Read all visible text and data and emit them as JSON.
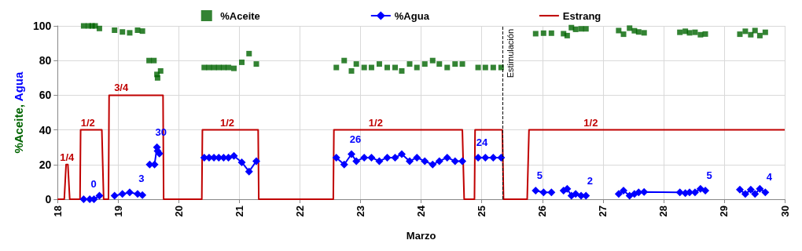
{
  "chart_data": {
    "type": "scatter",
    "xlabel": "Marzo",
    "ylabel": "%Aceite, Agua",
    "xlim": [
      18,
      30
    ],
    "xticks": [
      18,
      19,
      20,
      21,
      22,
      23,
      24,
      25,
      26,
      27,
      28,
      29,
      30
    ],
    "ylim": [
      0,
      100
    ],
    "yticks": [
      0,
      20,
      40,
      60,
      80,
      100
    ],
    "grid": true,
    "legend": "top",
    "series": [
      {
        "name": "%Aceite",
        "marker": "square",
        "color": "#006400",
        "x": [
          18.43,
          18.51,
          18.57,
          18.62,
          18.69,
          18.94,
          19.07,
          19.19,
          19.32,
          19.4,
          19.51,
          19.59,
          19.64,
          19.65,
          19.7,
          20.42,
          20.5,
          20.58,
          20.66,
          20.74,
          20.82,
          20.91,
          21.04,
          21.16,
          21.28,
          22.6,
          22.73,
          22.85,
          22.93,
          23.06,
          23.18,
          23.31,
          23.44,
          23.57,
          23.68,
          23.81,
          23.93,
          24.06,
          24.19,
          24.3,
          24.43,
          24.56,
          24.68,
          24.94,
          25.06,
          25.19,
          25.32,
          25.89,
          26.02,
          26.15,
          26.35,
          26.41,
          26.48,
          26.55,
          26.64,
          26.72,
          27.26,
          27.34,
          27.44,
          27.52,
          27.59,
          27.68,
          28.27,
          28.36,
          28.43,
          28.52,
          28.61,
          28.69,
          29.26,
          29.35,
          29.44,
          29.51,
          29.59,
          29.68
        ],
        "values": [
          100,
          100,
          100,
          100,
          98.5,
          97.5,
          96.5,
          96,
          97.5,
          97,
          80,
          80,
          72,
          70,
          74,
          76,
          76,
          76,
          76,
          76,
          76,
          75.5,
          79,
          84,
          78,
          76,
          80,
          74,
          78,
          76,
          76,
          78,
          76,
          76,
          74,
          78,
          76,
          78,
          80,
          78,
          76,
          78,
          78,
          76,
          76,
          76,
          76,
          95.5,
          95.8,
          95.8,
          95.5,
          94.4,
          99,
          98,
          98.3,
          98.3,
          97.3,
          95.2,
          98.7,
          97.2,
          96.5,
          96,
          96.3,
          96.9,
          96,
          96.3,
          94.9,
          95.3,
          95.2,
          96.9,
          94.9,
          97.3,
          94.4,
          96.3
        ]
      },
      {
        "name": "%Agua",
        "type": "line",
        "marker": "diamond",
        "color": "#0000ff",
        "x": [
          18.43,
          18.53,
          18.6,
          18.69,
          18.8,
          18.94,
          19.07,
          19.19,
          19.32,
          19.4,
          19.46,
          19.52,
          19.6,
          19.64,
          19.65,
          19.68,
          20,
          20.42,
          20.5,
          20.58,
          20.66,
          20.74,
          20.82,
          20.91,
          21.04,
          21.16,
          21.28,
          22,
          22.6,
          22.73,
          22.85,
          22.93,
          23.06,
          23.18,
          23.31,
          23.44,
          23.57,
          23.68,
          23.81,
          23.93,
          24.06,
          24.19,
          24.3,
          24.43,
          24.56,
          24.68,
          24.8,
          24.94,
          25.06,
          25.19,
          25.32,
          25.6,
          25.89,
          26.02,
          26.15,
          26.25,
          26.35,
          26.41,
          26.48,
          26.55,
          26.64,
          26.72,
          27,
          27.26,
          27.34,
          27.44,
          27.52,
          27.59,
          27.68,
          28.27,
          28.36,
          28.43,
          28.52,
          28.61,
          28.69,
          29,
          29.26,
          29.35,
          29.44,
          29.51,
          29.59,
          29.68
        ],
        "values": [
          0,
          0,
          0,
          2,
          null,
          2,
          3,
          4,
          3,
          2.4,
          null,
          20,
          20,
          30,
          27.8,
          26.4,
          null,
          24,
          24,
          24,
          24,
          24,
          24,
          25,
          21.3,
          16,
          22,
          null,
          24,
          20,
          26,
          22,
          24,
          24,
          22,
          24,
          24,
          26,
          22,
          24,
          22,
          20,
          22,
          24,
          22,
          22,
          null,
          24,
          24,
          24,
          24,
          null,
          5,
          4,
          4,
          null,
          5,
          6,
          2,
          3,
          2,
          2,
          null,
          3,
          5,
          2,
          3,
          4,
          4.2,
          4,
          3.5,
          4,
          4,
          6,
          5,
          null,
          5.5,
          3,
          5.5,
          3,
          6,
          4
        ],
        "value_labels": [
          null,
          "0",
          null,
          null,
          null,
          null,
          null,
          null,
          "3",
          null,
          null,
          null,
          null,
          "30",
          null,
          null,
          null,
          null,
          null,
          null,
          null,
          null,
          null,
          null,
          null,
          null,
          null,
          null,
          null,
          null,
          "26",
          null,
          null,
          null,
          null,
          null,
          null,
          null,
          null,
          null,
          null,
          null,
          null,
          null,
          null,
          null,
          null,
          "24",
          null,
          null,
          null,
          null,
          "5",
          null,
          null,
          null,
          null,
          null,
          null,
          null,
          null,
          "2",
          null,
          null,
          null,
          null,
          null,
          null,
          null,
          null,
          null,
          null,
          null,
          null,
          "5",
          null,
          null,
          null,
          null,
          null,
          null,
          "4"
        ]
      },
      {
        "name": "Estrang",
        "type": "line",
        "marker": "none",
        "color": "#c00000",
        "x": [
          18,
          18.11,
          18.14,
          18.17,
          18.2,
          18.37,
          18.38,
          18.73,
          18.76,
          18.84,
          18.85,
          19.74,
          19.75,
          20.38,
          20.39,
          21.31,
          21.32,
          22.55,
          22.56,
          24.68,
          24.71,
          24.88,
          24.89,
          25.34,
          25.36,
          25.75,
          25.78,
          30
        ],
        "values": [
          0,
          0,
          20,
          20,
          0,
          0,
          40,
          40,
          0,
          0,
          60,
          60,
          0,
          0,
          40,
          40,
          0,
          0,
          40,
          40,
          0,
          0,
          40,
          40,
          0,
          0,
          40,
          40
        ]
      }
    ],
    "annotations": [
      {
        "text": "1/4",
        "x": 18.155,
        "y": 20
      },
      {
        "text": "1/2",
        "x": 18.5,
        "y": 40
      },
      {
        "text": "3/4",
        "x": 19.05,
        "y": 60
      },
      {
        "text": "1/2",
        "x": 20.8,
        "y": 40
      },
      {
        "text": "1/2",
        "x": 23.25,
        "y": 40
      },
      {
        "text": "1/2",
        "x": 26.8,
        "y": 40
      }
    ],
    "ref_lines": [
      {
        "axis": "x",
        "value": 25.35,
        "label": "Estimulación",
        "color": "#000000",
        "line_style": "dashed"
      }
    ]
  }
}
